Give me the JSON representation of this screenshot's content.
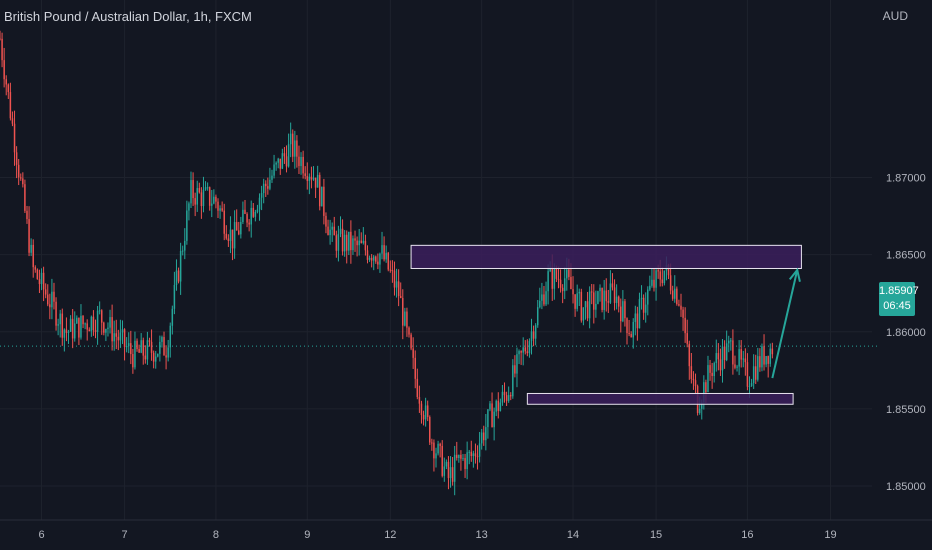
{
  "header": {
    "symbol_name": "British Pound / Australian Dollar",
    "separator": ", ",
    "timeframe": "1h",
    "exchange": "FXCM",
    "currency": "AUD"
  },
  "price_badge": {
    "price": "1.85907",
    "countdown": "06:45",
    "color": "#26a69a"
  },
  "colors": {
    "background": "#131722",
    "up": "#26a69a",
    "down": "#ef5350",
    "zone_fill": "#3b1f5c",
    "zone_border": "#e8e3f0",
    "arrow": "#26a69a"
  },
  "chart_data": {
    "type": "candlestick",
    "title": "British Pound / Australian Dollar, 1h, FXCM",
    "ylabel": "AUD",
    "ylim": [
      1.8478,
      1.8815
    ],
    "yticks": [
      "1.85000",
      "1.85500",
      "1.86000",
      "1.86500",
      "1.87000"
    ],
    "ytick_values": [
      1.85,
      1.855,
      1.86,
      1.865,
      1.87
    ],
    "xticks": [
      "6",
      "7",
      "8",
      "9",
      "12",
      "13",
      "14",
      "15",
      "16",
      "19"
    ],
    "xtick_index": [
      5,
      15,
      26,
      37,
      47,
      58,
      69,
      79,
      90,
      100
    ],
    "xlim": [
      0,
      105
    ],
    "current_price": 1.85907,
    "series": [
      {
        "waypoints_index": [
          0,
          4,
          8,
          12,
          16,
          20,
          23,
          26,
          28,
          32,
          35,
          38,
          40,
          43,
          46,
          48,
          50,
          52,
          54,
          55,
          57,
          59,
          61,
          64,
          66,
          68,
          70,
          72,
          74,
          76,
          78,
          80,
          82,
          83,
          84,
          86,
          88,
          90,
          92,
          93
        ],
        "waypoints_price": [
          1.879,
          1.864,
          1.86,
          1.861,
          1.8585,
          1.859,
          1.869,
          1.8685,
          1.866,
          1.8695,
          1.872,
          1.87,
          1.866,
          1.8655,
          1.865,
          1.8625,
          1.857,
          1.853,
          1.8505,
          1.8515,
          1.852,
          1.8545,
          1.856,
          1.86,
          1.8635,
          1.8635,
          1.8615,
          1.862,
          1.8625,
          1.86,
          1.8625,
          1.864,
          1.862,
          1.8575,
          1.8555,
          1.858,
          1.859,
          1.857,
          1.8585,
          1.859
        ]
      }
    ],
    "zones": [
      {
        "name": "resistance",
        "x_start": 49.5,
        "x_end": 96.5,
        "y_low": 1.8641,
        "y_high": 1.8656
      },
      {
        "name": "support",
        "x_start": 63.5,
        "x_end": 95.5,
        "y_low": 1.8553,
        "y_high": 1.856
      }
    ],
    "arrow": {
      "x_from": 93.0,
      "y_from": 1.857,
      "x_to": 96.0,
      "y_to": 1.864
    }
  }
}
